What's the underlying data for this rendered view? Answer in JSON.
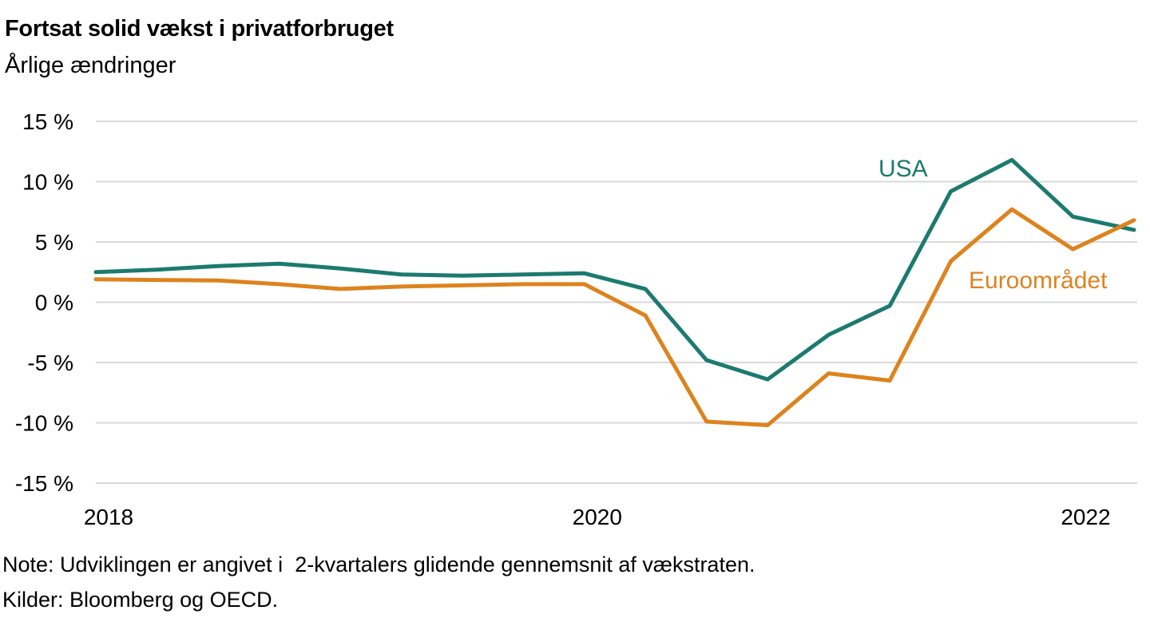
{
  "header": {
    "title": "Fortsat solid vækst i privatforbruget",
    "subtitle": "Årlige ændringer"
  },
  "footer": {
    "note": "Note: Udviklingen er angivet i  2-kvartalers glidende gennemsnit af vækstraten.",
    "sources": "Kilder: Bloomberg og OECD."
  },
  "chart_data": {
    "type": "line",
    "x_unit": "quarter",
    "categories": [
      "2018 K1",
      "2018 K2",
      "2018 K3",
      "2018 K4",
      "2019 K1",
      "2019 K2",
      "2019 K3",
      "2019 K4",
      "2020 K1",
      "2020 K2",
      "2020 K3",
      "2020 K4",
      "2021 K1",
      "2021 K2",
      "2021 K3",
      "2021 K4",
      "2022 K1",
      "2022 K2"
    ],
    "series": [
      {
        "name": "USA",
        "color": "#1c7a6f",
        "values": [
          2.5,
          2.7,
          3.0,
          3.2,
          2.8,
          2.3,
          2.2,
          2.3,
          2.4,
          1.1,
          -4.8,
          -6.4,
          -2.7,
          -0.3,
          9.2,
          11.8,
          7.1,
          6.0
        ],
        "label": {
          "text": "USA",
          "px": [
            1100,
            221
          ]
        }
      },
      {
        "name": "Euroområdet",
        "color": "#dd831e",
        "values": [
          1.9,
          1.85,
          1.8,
          1.5,
          1.1,
          1.3,
          1.4,
          1.5,
          1.5,
          -1.1,
          -9.9,
          -10.2,
          -5.9,
          -6.5,
          3.4,
          7.7,
          4.4,
          6.8
        ],
        "label": {
          "text": "Euroområdet",
          "px": [
            1213,
            361
          ]
        }
      }
    ],
    "ylim": [
      -15,
      15
    ],
    "yticks": [
      {
        "value": 15,
        "label": "15 %"
      },
      {
        "value": 10,
        "label": "10 %"
      },
      {
        "value": 5,
        "label": "5 %"
      },
      {
        "value": 0,
        "label": "0 %"
      },
      {
        "value": -5,
        "label": "-5 %"
      },
      {
        "value": -10,
        "label": "-10 %"
      },
      {
        "value": -15,
        "label": "-15 %"
      }
    ],
    "xticks": [
      {
        "index": 0,
        "label": "2018"
      },
      {
        "index": 8,
        "label": "2020"
      },
      {
        "index": 16,
        "label": "2022"
      }
    ],
    "grid": "horizontal",
    "gridline_color": "#d9d9d9",
    "text_color": "#000000",
    "legend": "inline-labels"
  }
}
